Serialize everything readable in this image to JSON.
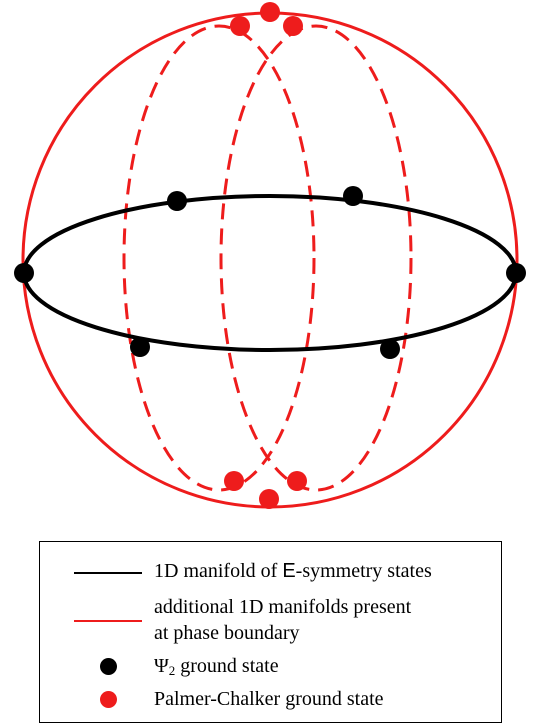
{
  "colors": {
    "black": "#000000",
    "red": "#ee1c1c"
  },
  "legend": {
    "items": [
      {
        "kind": "black-line",
        "text_before": "1D manifold of ",
        "symbol": "E",
        "text_after": "-symmetry states"
      },
      {
        "kind": "red-line",
        "line1": "additional 1D manifolds present",
        "line2": "at phase boundary"
      },
      {
        "kind": "black-dot",
        "symbol": "Ψ",
        "subscript": "2",
        "text": " ground state"
      },
      {
        "kind": "red-dot",
        "text": "Palmer-Chalker ground state"
      }
    ]
  }
}
